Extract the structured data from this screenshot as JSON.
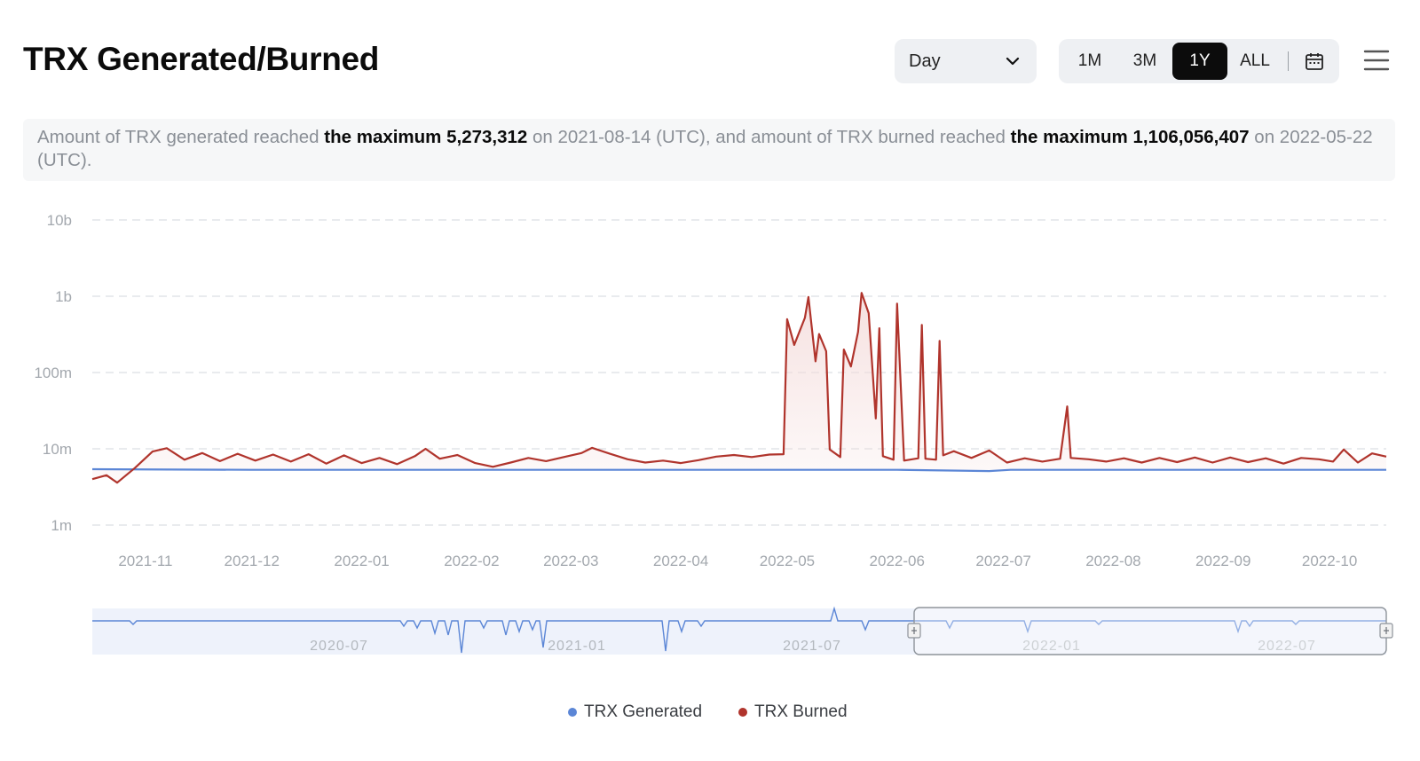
{
  "header": {
    "title": "TRX Generated/Burned",
    "interval": "Day",
    "ranges": [
      {
        "label": "1M",
        "active": false
      },
      {
        "label": "3M",
        "active": false
      },
      {
        "label": "1Y",
        "active": true
      },
      {
        "label": "ALL",
        "active": false
      }
    ]
  },
  "summary": {
    "p1": "Amount of TRX generated reached ",
    "b1": "the maximum 5,273,312",
    "p2": " on 2021-08-14 (UTC), and amount of TRX burned reached ",
    "b2": "the maximum 1,106,056,407",
    "p3": " on 2022-05-22 (UTC)."
  },
  "colors": {
    "generated": "#5b86d6",
    "burned": "#b0342c",
    "burned_fill": "#f4dcdb",
    "navigator_fill": "#eef2fb",
    "grid": "#dcdfe3"
  },
  "chart_data": {
    "type": "line",
    "y_scale": "log",
    "ylim": [
      1000000,
      10000000000
    ],
    "y_ticks": [
      {
        "label": "1m",
        "value": 1000000
      },
      {
        "label": "10m",
        "value": 10000000
      },
      {
        "label": "100m",
        "value": 100000000
      },
      {
        "label": "1b",
        "value": 1000000000
      },
      {
        "label": "10b",
        "value": 10000000000
      }
    ],
    "x_range": [
      "2021-10-17",
      "2022-10-17"
    ],
    "x_ticks": [
      "2021-11",
      "2021-12",
      "2022-01",
      "2022-02",
      "2022-03",
      "2022-04",
      "2022-05",
      "2022-06",
      "2022-07",
      "2022-08",
      "2022-09",
      "2022-10"
    ],
    "grid": true,
    "legend_position": "bottom-center",
    "series": [
      {
        "name": "TRX Generated",
        "points": [
          [
            "2021-10-17",
            5400000
          ],
          [
            "2021-12-01",
            5300000
          ],
          [
            "2022-02-01",
            5300000
          ],
          [
            "2022-04-01",
            5300000
          ],
          [
            "2022-06-01",
            5300000
          ],
          [
            "2022-06-27",
            5100000
          ],
          [
            "2022-07-03",
            5300000
          ],
          [
            "2022-08-01",
            5300000
          ],
          [
            "2022-10-17",
            5300000
          ]
        ]
      },
      {
        "name": "TRX Burned",
        "points": [
          [
            "2021-10-17",
            4000000
          ],
          [
            "2021-10-21",
            4500000
          ],
          [
            "2021-10-24",
            3600000
          ],
          [
            "2021-10-29",
            5600000
          ],
          [
            "2021-11-03",
            9200000
          ],
          [
            "2021-11-07",
            10200000
          ],
          [
            "2021-11-12",
            7200000
          ],
          [
            "2021-11-17",
            8800000
          ],
          [
            "2021-11-22",
            6900000
          ],
          [
            "2021-11-27",
            8600000
          ],
          [
            "2021-12-02",
            7000000
          ],
          [
            "2021-12-07",
            8400000
          ],
          [
            "2021-12-12",
            6800000
          ],
          [
            "2021-12-17",
            8500000
          ],
          [
            "2021-12-22",
            6400000
          ],
          [
            "2021-12-27",
            8200000
          ],
          [
            "2022-01-01",
            6500000
          ],
          [
            "2022-01-06",
            7600000
          ],
          [
            "2022-01-11",
            6300000
          ],
          [
            "2022-01-16",
            8000000
          ],
          [
            "2022-01-19",
            10000000
          ],
          [
            "2022-01-23",
            7400000
          ],
          [
            "2022-01-28",
            8300000
          ],
          [
            "2022-02-02",
            6500000
          ],
          [
            "2022-02-07",
            5800000
          ],
          [
            "2022-02-12",
            6600000
          ],
          [
            "2022-02-17",
            7600000
          ],
          [
            "2022-02-22",
            6900000
          ],
          [
            "2022-02-27",
            7800000
          ],
          [
            "2022-03-04",
            8800000
          ],
          [
            "2022-03-07",
            10300000
          ],
          [
            "2022-03-12",
            8600000
          ],
          [
            "2022-03-17",
            7300000
          ],
          [
            "2022-03-22",
            6600000
          ],
          [
            "2022-03-27",
            7000000
          ],
          [
            "2022-04-01",
            6500000
          ],
          [
            "2022-04-06",
            7100000
          ],
          [
            "2022-04-11",
            7900000
          ],
          [
            "2022-04-16",
            8300000
          ],
          [
            "2022-04-21",
            7800000
          ],
          [
            "2022-04-26",
            8400000
          ],
          [
            "2022-04-30",
            8500000
          ],
          [
            "2022-05-01",
            500000000
          ],
          [
            "2022-05-03",
            230000000
          ],
          [
            "2022-05-06",
            520000000
          ],
          [
            "2022-05-07",
            980000000
          ],
          [
            "2022-05-09",
            140000000
          ],
          [
            "2022-05-10",
            320000000
          ],
          [
            "2022-05-12",
            190000000
          ],
          [
            "2022-05-13",
            9800000
          ],
          [
            "2022-05-16",
            7800000
          ],
          [
            "2022-05-17",
            200000000
          ],
          [
            "2022-05-19",
            120000000
          ],
          [
            "2022-05-21",
            340000000
          ],
          [
            "2022-05-22",
            1106056407
          ],
          [
            "2022-05-24",
            600000000
          ],
          [
            "2022-05-26",
            25000000
          ],
          [
            "2022-05-27",
            380000000
          ],
          [
            "2022-05-28",
            8000000
          ],
          [
            "2022-05-31",
            7200000
          ],
          [
            "2022-06-01",
            800000000
          ],
          [
            "2022-06-03",
            7000000
          ],
          [
            "2022-06-07",
            7500000
          ],
          [
            "2022-06-08",
            420000000
          ],
          [
            "2022-06-09",
            7400000
          ],
          [
            "2022-06-12",
            7200000
          ],
          [
            "2022-06-13",
            260000000
          ],
          [
            "2022-06-14",
            8200000
          ],
          [
            "2022-06-17",
            9300000
          ],
          [
            "2022-06-22",
            7600000
          ],
          [
            "2022-06-27",
            9500000
          ],
          [
            "2022-07-02",
            6600000
          ],
          [
            "2022-07-07",
            7500000
          ],
          [
            "2022-07-12",
            6800000
          ],
          [
            "2022-07-17",
            7400000
          ],
          [
            "2022-07-19",
            36000000
          ],
          [
            "2022-07-20",
            7600000
          ],
          [
            "2022-07-25",
            7300000
          ],
          [
            "2022-07-30",
            6800000
          ],
          [
            "2022-08-04",
            7500000
          ],
          [
            "2022-08-09",
            6600000
          ],
          [
            "2022-08-14",
            7600000
          ],
          [
            "2022-08-19",
            6700000
          ],
          [
            "2022-08-24",
            7700000
          ],
          [
            "2022-08-29",
            6600000
          ],
          [
            "2022-09-03",
            7700000
          ],
          [
            "2022-09-08",
            6700000
          ],
          [
            "2022-09-13",
            7500000
          ],
          [
            "2022-09-18",
            6400000
          ],
          [
            "2022-09-23",
            7600000
          ],
          [
            "2022-09-28",
            7300000
          ],
          [
            "2022-10-02",
            6800000
          ],
          [
            "2022-10-05",
            9800000
          ],
          [
            "2022-10-09",
            6600000
          ],
          [
            "2022-10-13",
            8700000
          ],
          [
            "2022-10-17",
            7900000
          ]
        ]
      }
    ]
  },
  "navigator": {
    "labels": [
      "2020-07",
      "2021-01",
      "2021-07",
      "2022-01",
      "2022-07"
    ]
  }
}
